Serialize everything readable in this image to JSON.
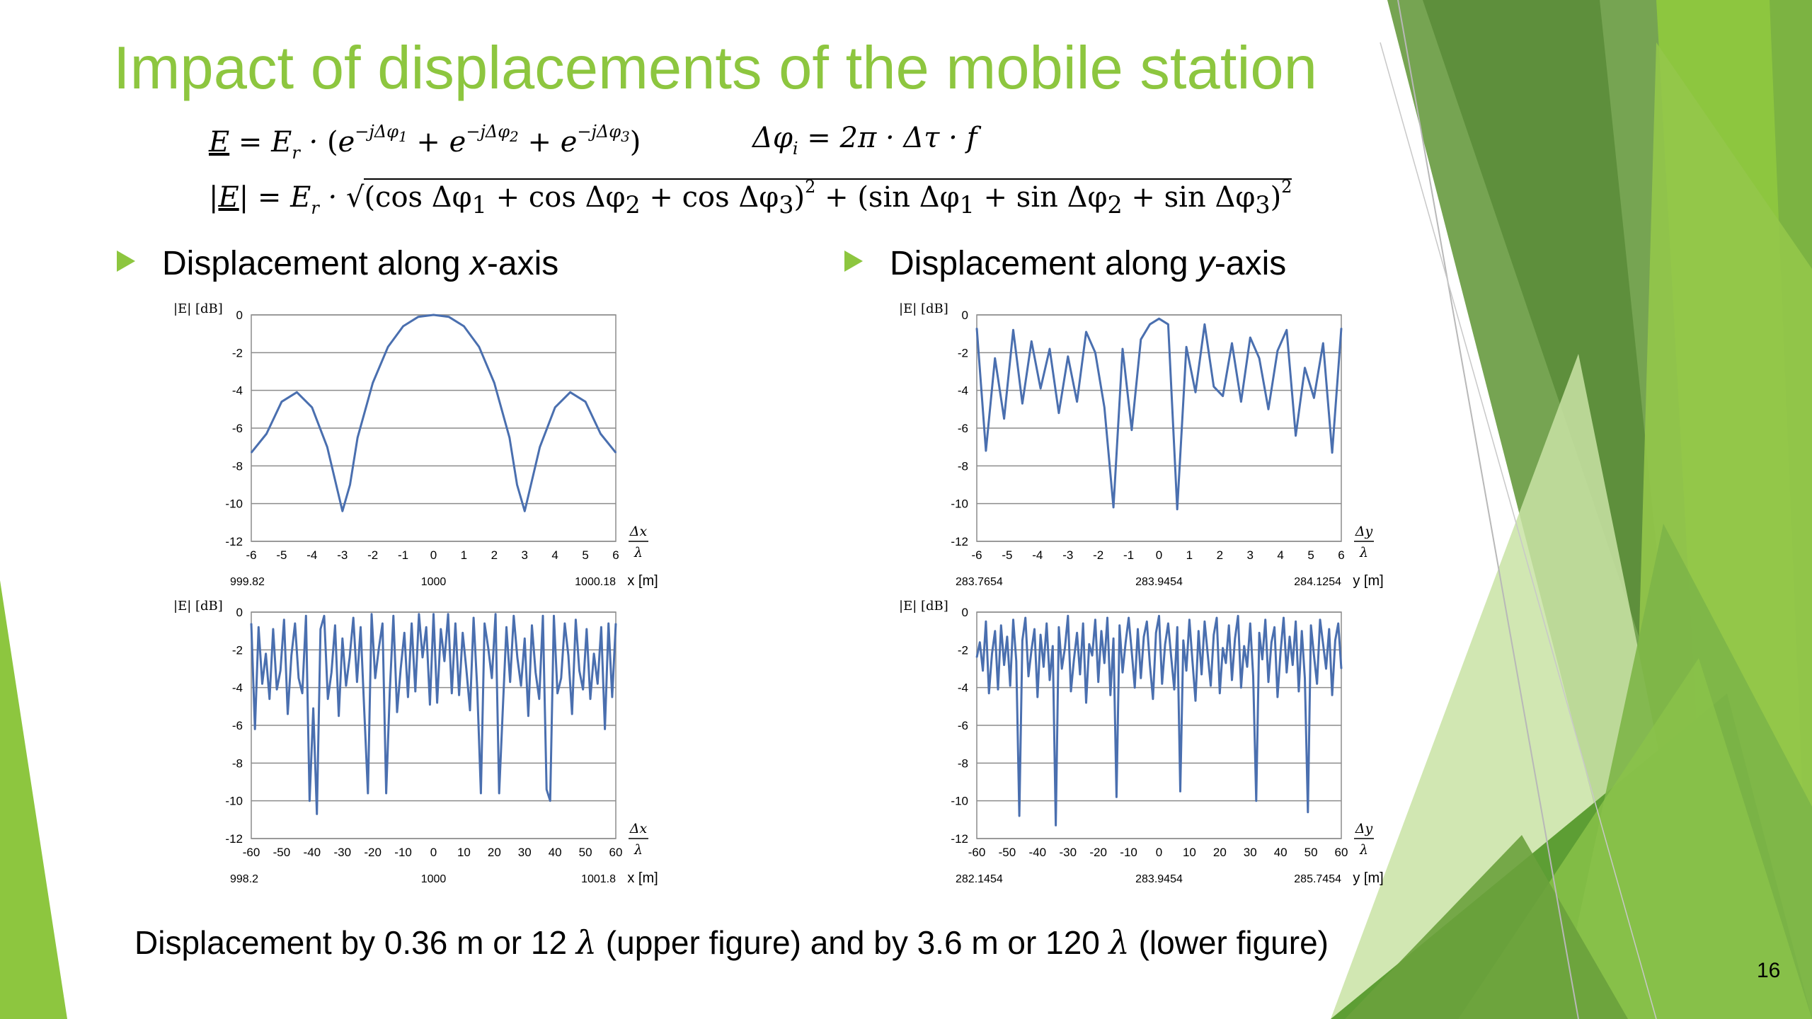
{
  "slide": {
    "title": "Impact of displacements of the mobile station",
    "page_number": "16",
    "accent_color": "#8DC63F",
    "formulas": {
      "line1_left": "E = Eᵣ · (e^(−jΔφ₁) + e^(−jΔφ₂) + e^(−jΔφ₃))",
      "line1_right": "Δφᵢ = 2π · Δτ · f",
      "line2": "|E| = Eᵣ · √((cos Δφ₁ + cos Δφ₂ + cos Δφ₃)² + (sin Δφ₁ + sin Δφ₂ + sin Δφ₃)²)"
    },
    "bullets": [
      {
        "text_before": "Displacement along ",
        "axis": "x",
        "text_after": "-axis"
      },
      {
        "text_before": "Displacement along ",
        "axis": "y",
        "text_after": "-axis"
      }
    ],
    "caption": {
      "part1": "Displacement by 0.36 m or 12 ",
      "lambda1": "λ",
      "part2": " (upper figure) and by 3.6 m or 120 ",
      "lambda2": "λ",
      "part3": " (lower figure)"
    }
  },
  "chart_data": [
    {
      "type": "line",
      "ylabel": "|E| [dB]",
      "xlabel_top": "Δx",
      "xlabel_bottom": "λ",
      "xunit_label": "x [m]",
      "xticks": [
        "-6",
        "-5",
        "-4",
        "-3",
        "-2",
        "-1",
        "0",
        "1",
        "2",
        "3",
        "4",
        "5",
        "6"
      ],
      "xlim": [
        -6,
        6
      ],
      "yticks": [
        "0",
        "-2",
        "-4",
        "-6",
        "-8",
        "-10",
        "-12"
      ],
      "ylim": [
        -12,
        0
      ],
      "positions": [
        "999.82",
        "1000",
        "1000.18"
      ],
      "grid": true,
      "line_color": "#4A6FAF",
      "series": [
        {
          "x": [
            -6,
            -5.5,
            -5,
            -4.5,
            -4,
            -3.5,
            -3,
            -2.75,
            -2.5,
            -2,
            -1.5,
            -1,
            -0.5,
            0,
            0.5,
            1,
            1.5,
            2,
            2.5,
            2.75,
            3,
            3.5,
            4,
            4.5,
            5,
            5.5,
            6
          ],
          "values": [
            -7.3,
            -6.3,
            -4.6,
            -4.1,
            -4.9,
            -7.0,
            -10.4,
            -9.0,
            -6.5,
            -3.6,
            -1.7,
            -0.6,
            -0.1,
            0,
            -0.1,
            -0.6,
            -1.7,
            -3.6,
            -6.5,
            -9.0,
            -10.4,
            -7.0,
            -4.9,
            -4.1,
            -4.6,
            -6.3,
            -7.3
          ]
        }
      ]
    },
    {
      "type": "line",
      "ylabel": "|E| [dB]",
      "xlabel_top": "Δy",
      "xlabel_bottom": "λ",
      "xunit_label": "y [m]",
      "xticks": [
        "-6",
        "-5",
        "-4",
        "-3",
        "-2",
        "-1",
        "0",
        "1",
        "2",
        "3",
        "4",
        "5",
        "6"
      ],
      "xlim": [
        -6,
        6
      ],
      "yticks": [
        "0",
        "-2",
        "-4",
        "-6",
        "-8",
        "-10",
        "-12"
      ],
      "ylim": [
        -12,
        0
      ],
      "positions": [
        "283.7654",
        "283.9454",
        "284.1254"
      ],
      "grid": true,
      "line_color": "#4A6FAF",
      "series": [
        {
          "x": [
            -6,
            -5.7,
            -5.4,
            -5.1,
            -4.8,
            -4.5,
            -4.2,
            -3.9,
            -3.6,
            -3.3,
            -3.0,
            -2.7,
            -2.4,
            -2.1,
            -1.8,
            -1.5,
            -1.2,
            -0.9,
            -0.6,
            -0.3,
            0,
            0.3,
            0.6,
            0.9,
            1.2,
            1.5,
            1.8,
            2.1,
            2.4,
            2.7,
            3.0,
            3.3,
            3.6,
            3.9,
            4.2,
            4.5,
            4.8,
            5.1,
            5.4,
            5.7,
            6
          ],
          "values": [
            -0.7,
            -7.2,
            -2.3,
            -5.5,
            -0.8,
            -4.7,
            -1.4,
            -3.9,
            -1.8,
            -5.2,
            -2.2,
            -4.6,
            -0.9,
            -2.0,
            -4.9,
            -10.2,
            -1.8,
            -6.1,
            -1.3,
            -0.5,
            -0.2,
            -0.5,
            -10.3,
            -1.7,
            -4.1,
            -0.5,
            -3.8,
            -4.3,
            -1.5,
            -4.6,
            -1.2,
            -2.3,
            -5.0,
            -1.9,
            -0.8,
            -6.4,
            -2.8,
            -4.4,
            -1.5,
            -7.3,
            -0.7
          ]
        }
      ]
    },
    {
      "type": "line",
      "ylabel": "|E| [dB]",
      "xlabel_top": "Δx",
      "xlabel_bottom": "λ",
      "xunit_label": "x [m]",
      "xticks": [
        "-60",
        "-50",
        "-40",
        "-30",
        "-20",
        "-10",
        "0",
        "10",
        "20",
        "30",
        "40",
        "50",
        "60"
      ],
      "xlim": [
        -60,
        60
      ],
      "yticks": [
        "0",
        "-2",
        "-4",
        "-6",
        "-8",
        "-10",
        "-12"
      ],
      "ylim": [
        -12,
        0
      ],
      "positions": [
        "998.2",
        "1000",
        "1001.8"
      ],
      "grid": true,
      "line_color": "#4A6FAF",
      "series": [
        {
          "x": [
            -60,
            -58.8,
            -57.6,
            -56.4,
            -55.2,
            -54,
            -52.8,
            -51.6,
            -50.4,
            -49.2,
            -48,
            -46.8,
            -45.6,
            -44.4,
            -43.2,
            -42,
            -40.8,
            -39.6,
            -38.4,
            -37.2,
            -36,
            -34.8,
            -33.6,
            -32.4,
            -31.2,
            -30,
            -28.8,
            -27.6,
            -26.4,
            -25.2,
            -24,
            -22.8,
            -21.6,
            -20.4,
            -19.2,
            -18,
            -16.8,
            -15.6,
            -14.4,
            -13.2,
            -12,
            -10.8,
            -9.6,
            -8.4,
            -7.2,
            -6,
            -4.8,
            -3.6,
            -2.4,
            -1.2,
            0,
            1.2,
            2.4,
            3.6,
            4.8,
            6,
            7.2,
            8.4,
            9.6,
            10.8,
            12,
            13.2,
            14.4,
            15.6,
            16.8,
            18,
            19.2,
            20.4,
            21.6,
            22.8,
            24,
            25.2,
            26.4,
            27.6,
            28.8,
            30,
            31.2,
            32.4,
            33.6,
            34.8,
            36,
            37.2,
            38.4,
            39.6,
            40.8,
            42,
            43.2,
            44.4,
            45.6,
            46.8,
            48,
            49.2,
            50.4,
            51.6,
            52.8,
            54,
            55.2,
            56.4,
            57.6,
            58.8,
            60
          ],
          "values": [
            -0.6,
            -6.2,
            -0.8,
            -3.8,
            -2.2,
            -4.6,
            -0.9,
            -4.1,
            -3.1,
            -0.4,
            -5.4,
            -2.3,
            -0.6,
            -3.5,
            -4.3,
            -0.2,
            -10.0,
            -5.1,
            -10.7,
            -0.9,
            -0.2,
            -4.6,
            -3.2,
            -0.7,
            -5.5,
            -1.4,
            -3.9,
            -2.4,
            -0.3,
            -3.7,
            -0.8,
            -5.2,
            -9.6,
            -0.1,
            -3.5,
            -1.9,
            -0.6,
            -9.6,
            -4.2,
            -0.2,
            -5.3,
            -3.0,
            -1.1,
            -4.5,
            -0.6,
            -4.2,
            -0.1,
            -2.4,
            -0.8,
            -4.9,
            -0.1,
            -4.8,
            -0.9,
            -2.6,
            -0.1,
            -4.3,
            -0.6,
            -4.4,
            -1.1,
            -3.0,
            -5.2,
            -0.3,
            -4.1,
            -9.6,
            -0.6,
            -1.9,
            -3.5,
            -0.1,
            -9.6,
            -5.2,
            -0.8,
            -3.7,
            -0.2,
            -2.4,
            -3.9,
            -1.4,
            -5.5,
            -0.7,
            -3.2,
            -4.6,
            -0.2,
            -9.4,
            -10.0,
            -0.2,
            -4.3,
            -3.5,
            -0.6,
            -2.3,
            -5.4,
            -0.4,
            -3.1,
            -4.1,
            -0.9,
            -4.6,
            -2.2,
            -3.8,
            -0.8,
            -6.2,
            -0.6,
            -4.5,
            -0.6
          ]
        }
      ]
    },
    {
      "type": "line",
      "ylabel": "|E| [dB]",
      "xlabel_top": "Δy",
      "xlabel_bottom": "λ",
      "xunit_label": "y [m]",
      "xticks": [
        "-60",
        "-50",
        "-40",
        "-30",
        "-20",
        "-10",
        "0",
        "10",
        "20",
        "30",
        "40",
        "50",
        "60"
      ],
      "xlim": [
        -60,
        60
      ],
      "yticks": [
        "0",
        "-2",
        "-4",
        "-6",
        "-8",
        "-10",
        "-12"
      ],
      "ylim": [
        -12,
        0
      ],
      "positions": [
        "282.1454",
        "283.9454",
        "285.7454"
      ],
      "grid": true,
      "line_color": "#4A6FAF",
      "series": [
        {
          "x": [
            -60,
            -59,
            -58,
            -57,
            -56,
            -55,
            -54,
            -53,
            -52,
            -51,
            -50,
            -49,
            -48,
            -47,
            -46,
            -45,
            -44,
            -43,
            -42,
            -41,
            -40,
            -39,
            -38,
            -37,
            -36,
            -35,
            -34,
            -33,
            -32,
            -31,
            -30,
            -29,
            -28,
            -27,
            -26,
            -25,
            -24,
            -23,
            -22,
            -21,
            -20,
            -19,
            -18,
            -17,
            -16,
            -15,
            -14,
            -13,
            -12,
            -11,
            -10,
            -9,
            -8,
            -7,
            -6,
            -5,
            -4,
            -3,
            -2,
            -1,
            0,
            1,
            2,
            3,
            4,
            5,
            6,
            7,
            8,
            9,
            10,
            11,
            12,
            13,
            14,
            15,
            16,
            17,
            18,
            19,
            20,
            21,
            22,
            23,
            24,
            25,
            26,
            27,
            28,
            29,
            30,
            31,
            32,
            33,
            34,
            35,
            36,
            37,
            38,
            39,
            40,
            41,
            42,
            43,
            44,
            45,
            46,
            47,
            48,
            49,
            50,
            51,
            52,
            53,
            54,
            55,
            56,
            57,
            58,
            59,
            60
          ],
          "values": [
            -2.4,
            -1.6,
            -3.1,
            -0.5,
            -4.3,
            -2.2,
            -1.0,
            -4.1,
            -0.7,
            -2.8,
            -1.3,
            -3.9,
            -0.4,
            -2.6,
            -10.8,
            -1.5,
            -0.3,
            -3.4,
            -2.0,
            -0.9,
            -4.5,
            -1.2,
            -2.9,
            -0.6,
            -3.6,
            -1.8,
            -11.3,
            -0.8,
            -3.0,
            -1.9,
            -0.2,
            -4.2,
            -2.5,
            -1.1,
            -3.3,
            -0.6,
            -4.8,
            -1.7,
            -2.3,
            -0.4,
            -3.7,
            -1.0,
            -2.7,
            -0.3,
            -4.4,
            -1.4,
            -9.8,
            -0.7,
            -3.2,
            -1.6,
            -0.3,
            -2.1,
            -4.0,
            -0.9,
            -3.5,
            -1.3,
            -0.5,
            -2.8,
            -4.6,
            -1.1,
            -0.2,
            -3.8,
            -1.7,
            -0.6,
            -2.4,
            -4.1,
            -0.8,
            -9.5,
            -1.5,
            -3.1,
            -0.4,
            -2.6,
            -4.7,
            -1.0,
            -3.3,
            -0.5,
            -2.2,
            -3.9,
            -1.2,
            -0.3,
            -4.3,
            -1.9,
            -2.7,
            -0.7,
            -3.6,
            -1.4,
            -0.2,
            -4.0,
            -1.8,
            -2.9,
            -0.6,
            -3.4,
            -10.0,
            -1.1,
            -2.5,
            -0.4,
            -3.7,
            -1.6,
            -0.8,
            -4.5,
            -2.1,
            -0.3,
            -3.2,
            -1.3,
            -2.8,
            -0.5,
            -4.2,
            -1.0,
            -3.5,
            -10.6,
            -0.7,
            -2.3,
            -3.8,
            -0.4,
            -1.7,
            -3.0,
            -0.9,
            -4.4,
            -1.5,
            -0.6,
            -3.0
          ]
        }
      ]
    }
  ]
}
